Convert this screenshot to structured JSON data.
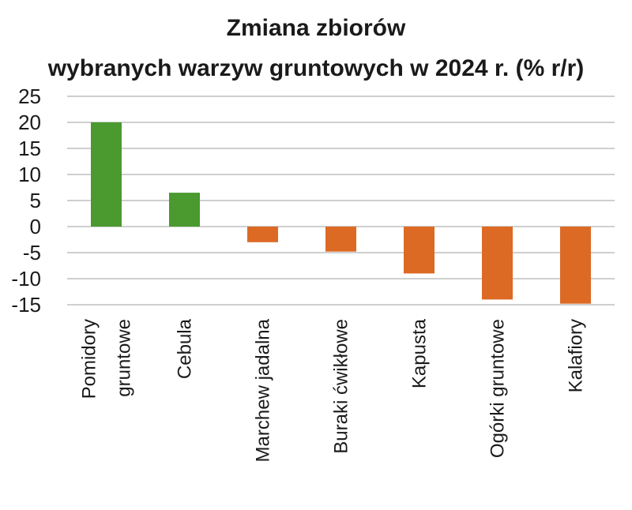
{
  "chart_data": {
    "type": "bar",
    "title_lines": [
      "Zmiana zbiorów",
      "wybranych warzyw gruntowych w 2024 r. (% r/r)"
    ],
    "categories": [
      [
        "Pomidory",
        "gruntowe"
      ],
      [
        "Cebula"
      ],
      [
        "Marchew jadalna"
      ],
      [
        "Buraki ćwikłowe"
      ],
      [
        "Kapusta"
      ],
      [
        "Ogórki gruntowe"
      ],
      [
        "Kalafiory"
      ]
    ],
    "values": [
      20,
      6.5,
      -3,
      -4.8,
      -9,
      -14,
      -14.8
    ],
    "ylim": [
      -15,
      25
    ],
    "yticks": [
      25,
      20,
      15,
      10,
      5,
      0,
      -5,
      -10,
      -15
    ],
    "grid": true,
    "colors": {
      "positive": "#4a9a2f",
      "negative": "#dc6a25"
    }
  }
}
